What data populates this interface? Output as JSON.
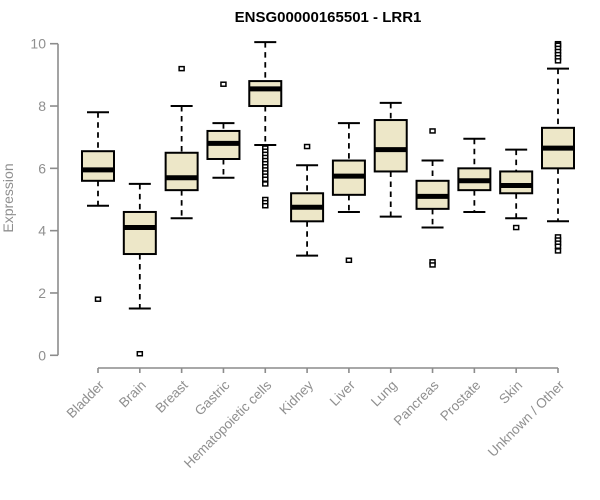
{
  "title": "ENSG00000165501 - LRR1",
  "colors": {
    "background": "#ffffff",
    "box_fill": "#ede7c8",
    "box_stroke": "#000000",
    "median": "#000000",
    "whisker": "#000000",
    "outlier_stroke": "#000000",
    "outlier_fill": "#ffffff",
    "axis": "#8c8c8c",
    "tick_label": "#8f8f8f",
    "title_color": "#000000"
  },
  "chart_data": {
    "type": "boxplot",
    "title": "ENSG00000165501 - LRR1",
    "xlabel": "",
    "ylabel": "Expression",
    "ylim": [
      0,
      10
    ],
    "yticks": [
      0,
      2,
      4,
      6,
      8,
      10
    ],
    "grid": false,
    "legend": "none",
    "categories": [
      "Bladder",
      "Brain",
      "Breast",
      "Gastric",
      "Hematopoietic cells",
      "Kidney",
      "Liver",
      "Lung",
      "Pancreas",
      "Prostate",
      "Skin",
      "Unknown / Other"
    ],
    "series": [
      {
        "category": "Bladder",
        "whisker_low": 4.8,
        "q1": 5.6,
        "median": 5.95,
        "q3": 6.55,
        "whisker_high": 7.8,
        "outliers": [
          1.8
        ]
      },
      {
        "category": "Brain",
        "whisker_low": 1.5,
        "q1": 3.25,
        "median": 4.1,
        "q3": 4.6,
        "whisker_high": 5.5,
        "outliers": [
          0.05
        ]
      },
      {
        "category": "Breast",
        "whisker_low": 4.4,
        "q1": 5.3,
        "median": 5.7,
        "q3": 6.5,
        "whisker_high": 8.0,
        "outliers": [
          9.2
        ]
      },
      {
        "category": "Gastric",
        "whisker_low": 5.7,
        "q1": 6.3,
        "median": 6.8,
        "q3": 7.2,
        "whisker_high": 7.45,
        "outliers": [
          8.7
        ]
      },
      {
        "category": "Hematopoietic cells",
        "whisker_low": 6.75,
        "q1": 8.0,
        "median": 8.55,
        "q3": 8.8,
        "whisker_high": 10.05,
        "outliers": [
          6.65,
          6.55,
          6.45,
          6.35,
          6.25,
          6.15,
          6.05,
          5.95,
          5.85,
          5.75,
          5.65,
          5.5,
          5.0,
          4.9,
          4.8
        ]
      },
      {
        "category": "Kidney",
        "whisker_low": 3.2,
        "q1": 4.3,
        "median": 4.75,
        "q3": 5.2,
        "whisker_high": 6.1,
        "outliers": [
          6.7
        ]
      },
      {
        "category": "Liver",
        "whisker_low": 4.6,
        "q1": 5.15,
        "median": 5.75,
        "q3": 6.25,
        "whisker_high": 7.45,
        "outliers": [
          3.05
        ]
      },
      {
        "category": "Lung",
        "whisker_low": 4.45,
        "q1": 5.9,
        "median": 6.6,
        "q3": 7.55,
        "whisker_high": 8.1,
        "outliers": []
      },
      {
        "category": "Pancreas",
        "whisker_low": 4.1,
        "q1": 4.7,
        "median": 5.1,
        "q3": 5.6,
        "whisker_high": 6.25,
        "outliers": [
          7.2,
          3.0,
          2.9
        ]
      },
      {
        "category": "Prostate",
        "whisker_low": 4.6,
        "q1": 5.3,
        "median": 5.6,
        "q3": 6.0,
        "whisker_high": 6.95,
        "outliers": []
      },
      {
        "category": "Skin",
        "whisker_low": 4.4,
        "q1": 5.2,
        "median": 5.45,
        "q3": 5.9,
        "whisker_high": 6.6,
        "outliers": [
          4.1
        ]
      },
      {
        "category": "Unknown / Other",
        "whisker_low": 4.3,
        "q1": 6.0,
        "median": 6.65,
        "q3": 7.3,
        "whisker_high": 9.2,
        "outliers": [
          10.0,
          9.95,
          9.85,
          9.75,
          9.65,
          9.55,
          9.45,
          3.8,
          3.7,
          3.6,
          3.5,
          3.35
        ]
      }
    ]
  }
}
